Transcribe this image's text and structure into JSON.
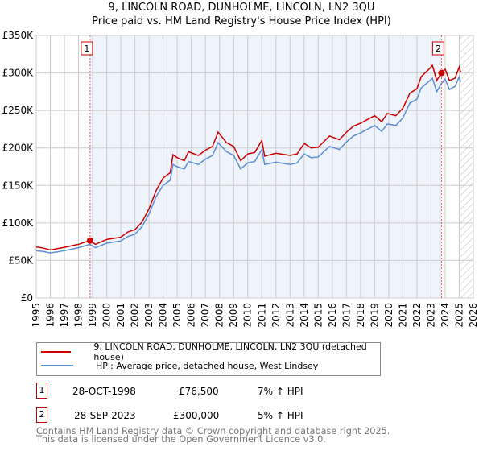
{
  "title": "9, LINCOLN ROAD, DUNHOLME, LINCOLN, LN2 3QU",
  "subtitle": "Price paid vs. HM Land Registry's House Price Index (HPI)",
  "chart_data": {
    "type": "line",
    "ylim": [
      0,
      350000
    ],
    "xlim": [
      1995,
      2026
    ],
    "yticks": [
      {
        "v": 0,
        "label": "£0"
      },
      {
        "v": 50000,
        "label": "£50K"
      },
      {
        "v": 100000,
        "label": "£100K"
      },
      {
        "v": 150000,
        "label": "£150K"
      },
      {
        "v": 200000,
        "label": "£200K"
      },
      {
        "v": 250000,
        "label": "£250K"
      },
      {
        "v": 300000,
        "label": "£300K"
      },
      {
        "v": 350000,
        "label": "£350K"
      }
    ],
    "xticks": [
      "1995",
      "1996",
      "1997",
      "1998",
      "1999",
      "2000",
      "2001",
      "2002",
      "2003",
      "2004",
      "2005",
      "2006",
      "2007",
      "2008",
      "2009",
      "2010",
      "2011",
      "2012",
      "2013",
      "2014",
      "2015",
      "2016",
      "2017",
      "2018",
      "2019",
      "2020",
      "2021",
      "2022",
      "2023",
      "2024",
      "2025",
      "2026"
    ],
    "x": [
      1995,
      1995.5,
      1996,
      1997,
      1998,
      1998.8,
      1999.2,
      2000,
      2001,
      2001.5,
      2002,
      2002.5,
      2003,
      2003.5,
      2004,
      2004.5,
      2004.7,
      2005,
      2005.5,
      2005.8,
      2006.5,
      2007,
      2007.5,
      2007.9,
      2008.5,
      2009,
      2009.5,
      2010,
      2010.5,
      2011,
      2011.2,
      2012,
      2013,
      2013.5,
      2014,
      2014.5,
      2015,
      2015.8,
      2016.5,
      2017,
      2017.5,
      2018,
      2018.5,
      2019,
      2019.5,
      2019.9,
      2020.5,
      2021,
      2021.5,
      2022,
      2022.3,
      2022.8,
      2023.1,
      2023.4,
      2023.74,
      2024,
      2024.3,
      2024.7,
      2025,
      2025.1
    ],
    "series": [
      {
        "name": "9, LINCOLN ROAD, DUNHOLME, LINCOLN, LN2 3QU (detached house)",
        "color": "#cc0000",
        "values": [
          68000,
          66500,
          64000,
          67500,
          71500,
          76500,
          71500,
          78000,
          81000,
          88000,
          91000,
          101000,
          119000,
          143000,
          160000,
          167000,
          191000,
          187000,
          183000,
          195000,
          190000,
          197000,
          202000,
          221000,
          207000,
          202000,
          183000,
          192000,
          194000,
          210000,
          189000,
          193000,
          190000,
          192000,
          206000,
          200000,
          201000,
          216000,
          211000,
          221000,
          229000,
          233000,
          238000,
          243000,
          235000,
          246000,
          243000,
          253000,
          273000,
          279000,
          295000,
          304000,
          310000,
          290000,
          300000,
          305000,
          290000,
          293000,
          308000,
          301000
        ]
      },
      {
        "name": "HPI: Average price, detached house, West Lindsey",
        "color": "#5b8fd4",
        "values": [
          63000,
          62000,
          60000,
          63000,
          67000,
          71500,
          67000,
          73000,
          76000,
          82000,
          85000,
          95000,
          112000,
          135000,
          150000,
          157000,
          178000,
          175000,
          172000,
          182000,
          178000,
          185000,
          190000,
          207000,
          195000,
          190000,
          172000,
          180000,
          182000,
          198000,
          178000,
          181000,
          178000,
          180000,
          192000,
          187000,
          188000,
          202000,
          198000,
          208000,
          216000,
          220000,
          225000,
          230000,
          222000,
          232000,
          230000,
          240000,
          260000,
          265000,
          280000,
          288000,
          293000,
          275000,
          286000,
          292000,
          278000,
          282000,
          295000,
          288000
        ]
      }
    ],
    "sales": [
      {
        "label": "1",
        "x": 1998.82,
        "value": 76500
      },
      {
        "label": "2",
        "x": 2023.74,
        "value": 300000
      }
    ],
    "legend_position": "bottom"
  },
  "transactions": [
    {
      "num": "1",
      "date": "28-OCT-1998",
      "price": "£76,500",
      "hpi": "7% ↑ HPI"
    },
    {
      "num": "2",
      "date": "28-SEP-2023",
      "price": "£300,000",
      "hpi": "5% ↑ HPI"
    }
  ],
  "footer": [
    "Contains HM Land Registry data © Crown copyright and database right 2025.",
    "This data is licensed under the Open Government Licence v3.0."
  ]
}
